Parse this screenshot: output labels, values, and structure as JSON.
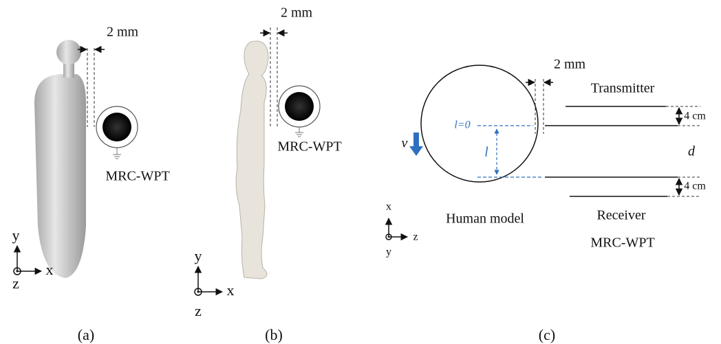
{
  "panel_a": {
    "gap": "2 mm",
    "device": "MRC-WPT",
    "axis_y": "y",
    "axis_x": "x",
    "axis_z": "z",
    "caption": "(a)"
  },
  "panel_b": {
    "gap": "2 mm",
    "device": "MRC-WPT",
    "axis_y": "y",
    "axis_x": "x",
    "axis_z": "z",
    "caption": "(b)"
  },
  "panel_c": {
    "gap": "2 mm",
    "transmitter": "Transmitter",
    "top_spacing": "4 cm",
    "l_zero": "l=0",
    "l": "l",
    "v": "v",
    "d": "d",
    "bottom_spacing": "4 cm",
    "human": "Human model",
    "receiver": "Receiver",
    "device": "MRC-WPT",
    "axis_x": "x",
    "axis_z": "z",
    "axis_y": "y",
    "caption": "(c)"
  }
}
